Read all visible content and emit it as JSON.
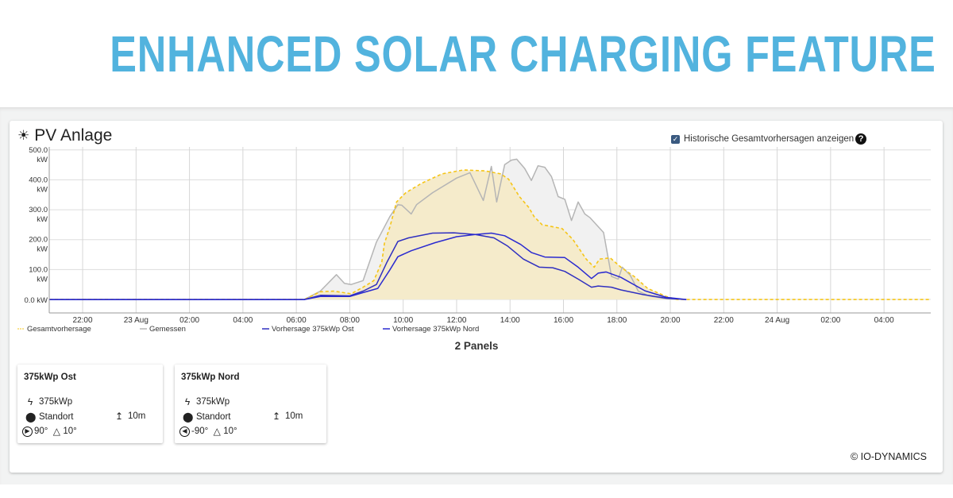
{
  "banner": {
    "title": "ENHANCED SOLAR CHARGING FEATURE",
    "color": "#52b3de"
  },
  "widget": {
    "icon": "sun-icon",
    "title": "PV Anlage",
    "history_checkbox": {
      "label": "Historische Gesamtvorhersagen anzeigen",
      "checked": true,
      "help_icon": "question-circle-icon"
    }
  },
  "chart_data": {
    "type": "line",
    "x_range": [
      "22 Aug 20:45",
      "24 Aug 05:45"
    ],
    "ylim": [
      -45,
      510
    ],
    "grid": true,
    "legend_placement": "bottom",
    "y_ticks": [
      {
        "value": 500,
        "label": [
          "500.0",
          "kW"
        ]
      },
      {
        "value": 400,
        "label": [
          "400.0",
          "kW"
        ]
      },
      {
        "value": 300,
        "label": [
          "300.0",
          "kW"
        ]
      },
      {
        "value": 200,
        "label": [
          "200.0",
          "kW"
        ]
      },
      {
        "value": 100,
        "label": [
          "100.0",
          "kW"
        ]
      },
      {
        "value": 0,
        "label": [
          "0.0 kW"
        ]
      }
    ],
    "x_ticks": [
      {
        "t": "22 Aug 22:00",
        "label": "22:00"
      },
      {
        "t": "23 Aug 00:00",
        "label": "23 Aug"
      },
      {
        "t": "23 Aug 02:00",
        "label": "02:00"
      },
      {
        "t": "23 Aug 04:00",
        "label": "04:00"
      },
      {
        "t": "23 Aug 06:00",
        "label": "06:00"
      },
      {
        "t": "23 Aug 08:00",
        "label": "08:00"
      },
      {
        "t": "23 Aug 10:00",
        "label": "10:00"
      },
      {
        "t": "23 Aug 12:00",
        "label": "12:00"
      },
      {
        "t": "23 Aug 14:00",
        "label": "14:00"
      },
      {
        "t": "23 Aug 16:00",
        "label": "16:00"
      },
      {
        "t": "23 Aug 18:00",
        "label": "18:00"
      },
      {
        "t": "23 Aug 20:00",
        "label": "20:00"
      },
      {
        "t": "23 Aug 22:00",
        "label": "22:00"
      },
      {
        "t": "24 Aug 00:00",
        "label": "24 Aug"
      },
      {
        "t": "24 Aug 02:00",
        "label": "02:00"
      },
      {
        "t": "24 Aug 04:00",
        "label": "04:00"
      }
    ],
    "series": [
      {
        "name": "Gemessen",
        "color": "#b5b5b5",
        "fill": "#f1f1f1",
        "dashed": false,
        "points": [
          [
            "22 Aug 20:45",
            0
          ],
          [
            "23 Aug 06:18",
            0
          ],
          [
            "23 Aug 06:54",
            28
          ],
          [
            "23 Aug 07:30",
            83
          ],
          [
            "23 Aug 07:48",
            54
          ],
          [
            "23 Aug 08:03",
            50
          ],
          [
            "23 Aug 08:30",
            63
          ],
          [
            "23 Aug 09:00",
            192
          ],
          [
            "23 Aug 09:30",
            277
          ],
          [
            "23 Aug 09:48",
            317
          ],
          [
            "23 Aug 09:57",
            315
          ],
          [
            "23 Aug 10:18",
            286
          ],
          [
            "23 Aug 10:30",
            317
          ],
          [
            "23 Aug 11:06",
            357
          ],
          [
            "23 Aug 12:00",
            406
          ],
          [
            "23 Aug 12:30",
            424
          ],
          [
            "23 Aug 13:00",
            331
          ],
          [
            "23 Aug 13:18",
            445
          ],
          [
            "23 Aug 13:30",
            326
          ],
          [
            "23 Aug 13:48",
            451
          ],
          [
            "23 Aug 14:03",
            466
          ],
          [
            "23 Aug 14:15",
            469
          ],
          [
            "23 Aug 14:33",
            438
          ],
          [
            "23 Aug 14:48",
            398
          ],
          [
            "23 Aug 15:03",
            447
          ],
          [
            "23 Aug 15:18",
            442
          ],
          [
            "23 Aug 15:33",
            411
          ],
          [
            "23 Aug 15:48",
            344
          ],
          [
            "23 Aug 16:03",
            335
          ],
          [
            "23 Aug 16:18",
            264
          ],
          [
            "23 Aug 16:33",
            326
          ],
          [
            "23 Aug 16:48",
            286
          ],
          [
            "23 Aug 17:00",
            273
          ],
          [
            "23 Aug 17:30",
            224
          ],
          [
            "23 Aug 17:48",
            77
          ],
          [
            "23 Aug 18:03",
            68
          ],
          [
            "23 Aug 18:12",
            108
          ],
          [
            "23 Aug 18:30",
            81
          ],
          [
            "23 Aug 18:48",
            28
          ],
          [
            "23 Aug 19:12",
            12
          ],
          [
            "23 Aug 19:48",
            3
          ],
          [
            "23 Aug 20:18",
            0
          ]
        ]
      },
      {
        "name": "Gesamtvorhersage",
        "color": "#f5c518",
        "fill": "#f5ebcb",
        "dashed": true,
        "points": [
          [
            "22 Aug 20:45",
            0
          ],
          [
            "23 Aug 06:18",
            0
          ],
          [
            "23 Aug 06:54",
            26
          ],
          [
            "23 Aug 07:24",
            28
          ],
          [
            "23 Aug 08:03",
            19
          ],
          [
            "23 Aug 08:30",
            41
          ],
          [
            "23 Aug 08:54",
            63
          ],
          [
            "23 Aug 09:12",
            126
          ],
          [
            "23 Aug 09:18",
            188
          ],
          [
            "23 Aug 09:30",
            242
          ],
          [
            "23 Aug 09:45",
            326
          ],
          [
            "23 Aug 10:06",
            357
          ],
          [
            "23 Aug 10:42",
            389
          ],
          [
            "23 Aug 11:27",
            420
          ],
          [
            "23 Aug 12:15",
            433
          ],
          [
            "23 Aug 13:03",
            430
          ],
          [
            "23 Aug 13:39",
            420
          ],
          [
            "23 Aug 13:57",
            402
          ],
          [
            "23 Aug 14:21",
            344
          ],
          [
            "23 Aug 14:42",
            308
          ],
          [
            "23 Aug 14:54",
            277
          ],
          [
            "23 Aug 15:12",
            250
          ],
          [
            "23 Aug 15:57",
            237
          ],
          [
            "23 Aug 16:21",
            201
          ],
          [
            "23 Aug 16:51",
            135
          ],
          [
            "23 Aug 17:09",
            108
          ],
          [
            "23 Aug 17:21",
            135
          ],
          [
            "23 Aug 17:45",
            139
          ],
          [
            "23 Aug 18:09",
            108
          ],
          [
            "23 Aug 18:39",
            77
          ],
          [
            "23 Aug 19:09",
            37
          ],
          [
            "23 Aug 19:51",
            10
          ],
          [
            "23 Aug 20:15",
            0
          ],
          [
            "24 Aug 05:45",
            0
          ]
        ]
      },
      {
        "name": "Vorhersage 375kWp Ost",
        "color": "#3030c0",
        "fill": null,
        "dashed": false,
        "points": [
          [
            "22 Aug 20:45",
            0
          ],
          [
            "23 Aug 06:18",
            0
          ],
          [
            "23 Aug 06:54",
            14
          ],
          [
            "23 Aug 08:00",
            12
          ],
          [
            "23 Aug 08:30",
            28
          ],
          [
            "23 Aug 09:00",
            50
          ],
          [
            "23 Aug 09:24",
            126
          ],
          [
            "23 Aug 09:48",
            194
          ],
          [
            "23 Aug 10:12",
            206
          ],
          [
            "23 Aug 11:06",
            222
          ],
          [
            "23 Aug 11:54",
            223
          ],
          [
            "23 Aug 12:42",
            217
          ],
          [
            "23 Aug 13:24",
            206
          ],
          [
            "23 Aug 13:54",
            179
          ],
          [
            "23 Aug 14:30",
            135
          ],
          [
            "23 Aug 15:06",
            108
          ],
          [
            "23 Aug 15:36",
            106
          ],
          [
            "23 Aug 16:03",
            94
          ],
          [
            "23 Aug 16:33",
            68
          ],
          [
            "23 Aug 17:03",
            41
          ],
          [
            "23 Aug 17:18",
            45
          ],
          [
            "23 Aug 17:48",
            41
          ],
          [
            "23 Aug 18:09",
            32
          ],
          [
            "23 Aug 19:00",
            16
          ],
          [
            "23 Aug 19:51",
            4
          ],
          [
            "23 Aug 20:36",
            0
          ]
        ]
      },
      {
        "name": "Vorhersage 375kWp Nord",
        "color": "#2a2ad0",
        "fill": null,
        "dashed": false,
        "points": [
          [
            "22 Aug 20:45",
            0
          ],
          [
            "23 Aug 06:18",
            0
          ],
          [
            "23 Aug 06:54",
            10
          ],
          [
            "23 Aug 08:00",
            10
          ],
          [
            "23 Aug 08:30",
            23
          ],
          [
            "23 Aug 09:03",
            37
          ],
          [
            "23 Aug 09:30",
            99
          ],
          [
            "23 Aug 09:48",
            143
          ],
          [
            "23 Aug 10:18",
            163
          ],
          [
            "23 Aug 11:12",
            190
          ],
          [
            "23 Aug 12:00",
            210
          ],
          [
            "23 Aug 12:42",
            217
          ],
          [
            "23 Aug 13:18",
            222
          ],
          [
            "23 Aug 13:48",
            213
          ],
          [
            "23 Aug 14:24",
            184
          ],
          [
            "23 Aug 14:48",
            157
          ],
          [
            "23 Aug 15:18",
            142
          ],
          [
            "23 Aug 16:03",
            140
          ],
          [
            "23 Aug 16:33",
            108
          ],
          [
            "23 Aug 17:03",
            70
          ],
          [
            "23 Aug 17:18",
            88
          ],
          [
            "23 Aug 17:36",
            92
          ],
          [
            "23 Aug 18:09",
            74
          ],
          [
            "23 Aug 19:03",
            29
          ],
          [
            "23 Aug 19:51",
            7
          ],
          [
            "23 Aug 20:36",
            0
          ]
        ]
      }
    ],
    "legend": [
      "Gesamtvorhersage",
      "Gemessen",
      "Vorhersage 375kWp Ost",
      "Vorhersage 375kWp Nord"
    ]
  },
  "panels": {
    "title": "2 Panels",
    "items": [
      {
        "name": "375kWp Ost",
        "power": "375kWp",
        "location": "Standort",
        "height": "10m",
        "azimuth": "90°",
        "tilt": "10°",
        "azimuth_icon": "arrow-right-circle-icon"
      },
      {
        "name": "375kWp Nord",
        "power": "375kWp",
        "location": "Standort",
        "height": "10m",
        "azimuth": "-90°",
        "tilt": "10°",
        "azimuth_icon": "arrow-left-circle-icon"
      }
    ]
  },
  "footer": {
    "copyright": "© IO-DYNAMICS"
  }
}
